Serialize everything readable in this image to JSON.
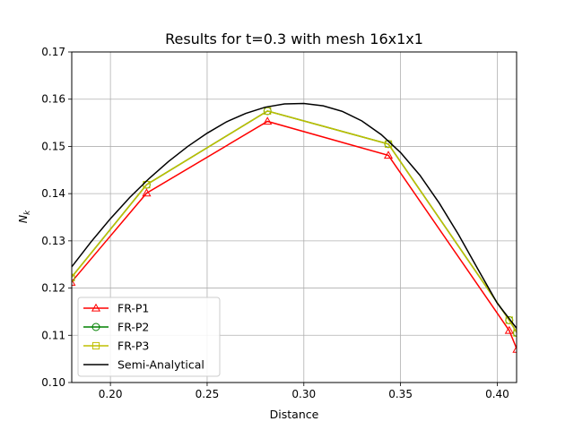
{
  "chart_data": {
    "type": "line",
    "title": "Results for t=0.3 with mesh 16x1x1",
    "xlabel": "Distance",
    "ylabel": "N",
    "ylabel_subscript": "k",
    "xlim": [
      0.18,
      0.41
    ],
    "ylim": [
      0.1,
      0.17
    ],
    "xticks": [
      0.2,
      0.25,
      0.3,
      0.35,
      0.4
    ],
    "xtick_labels": [
      "0.20",
      "0.25",
      "0.30",
      "0.35",
      "0.40"
    ],
    "yticks": [
      0.1,
      0.11,
      0.12,
      0.13,
      0.14,
      0.15,
      0.16,
      0.17
    ],
    "ytick_labels": [
      "0.10",
      "0.11",
      "0.12",
      "0.13",
      "0.14",
      "0.15",
      "0.16",
      "0.17"
    ],
    "grid": true,
    "legend_position": "lower-left",
    "series": [
      {
        "name": "FR-P1",
        "color": "#ff0000",
        "marker": "triangle",
        "x": [
          0.1797,
          0.2187,
          0.2812,
          0.3437,
          0.4062,
          0.4102
        ],
        "y": [
          0.1212,
          0.1401,
          0.1553,
          0.1481,
          0.111,
          0.107
        ]
      },
      {
        "name": "FR-P2",
        "color": "#008000",
        "marker": "circle",
        "x": [
          0.1797,
          0.2187,
          0.2812,
          0.3437,
          0.4062,
          0.4102
        ],
        "y": [
          0.1222,
          0.1419,
          0.1575,
          0.1505,
          0.1132,
          0.1105
        ]
      },
      {
        "name": "FR-P3",
        "color": "#bfbf00",
        "marker": "square",
        "x": [
          0.1797,
          0.2187,
          0.2812,
          0.3437,
          0.4062,
          0.4102
        ],
        "y": [
          0.1222,
          0.1419,
          0.1575,
          0.1505,
          0.1132,
          0.1105
        ]
      },
      {
        "name": "Semi-Analytical",
        "color": "#000000",
        "marker": "none",
        "x": [
          0.18,
          0.19,
          0.2,
          0.21,
          0.22,
          0.23,
          0.24,
          0.25,
          0.26,
          0.27,
          0.28,
          0.29,
          0.3,
          0.31,
          0.32,
          0.33,
          0.34,
          0.35,
          0.36,
          0.37,
          0.38,
          0.39,
          0.4,
          0.41
        ],
        "y": [
          0.1245,
          0.1298,
          0.1347,
          0.1392,
          0.1432,
          0.1468,
          0.15,
          0.1528,
          0.1552,
          0.157,
          0.1583,
          0.159,
          0.1591,
          0.1586,
          0.1574,
          0.1554,
          0.1525,
          0.1487,
          0.1439,
          0.138,
          0.1313,
          0.124,
          0.1168,
          0.1115
        ]
      }
    ]
  }
}
